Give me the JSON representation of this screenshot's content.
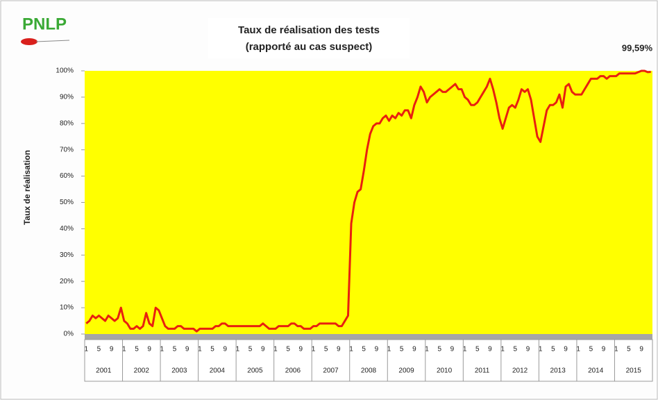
{
  "logo": "PNLP",
  "chart_data": {
    "type": "line",
    "title": [
      "Taux de réalisation des tests",
      "(rapporté au cas suspect)"
    ],
    "annotation": "99,59%",
    "y_label": "Taux de réalisation",
    "years": [
      "2001",
      "2002",
      "2003",
      "2004",
      "2005",
      "2006",
      "2007",
      "2008",
      "2009",
      "2010",
      "2011",
      "2012",
      "2013",
      "2014",
      "2015"
    ],
    "categories": [
      "1",
      null,
      null,
      null,
      "5",
      null,
      null,
      null,
      "9",
      null,
      null,
      null,
      "1",
      null,
      null,
      null,
      "5",
      null,
      null,
      null,
      "9",
      null,
      null,
      null,
      "1",
      null,
      null,
      null,
      "5",
      null,
      null,
      null,
      "9",
      null,
      null,
      null,
      "1",
      null,
      null,
      null,
      "5",
      null,
      null,
      null,
      "9",
      null,
      null,
      null,
      "1",
      null,
      null,
      null,
      "5",
      null,
      null,
      null,
      "9",
      null,
      null,
      null,
      "1",
      null,
      null,
      null,
      "5",
      null,
      null,
      null,
      "9",
      null,
      null,
      null,
      "1",
      null,
      null,
      null,
      "5",
      null,
      null,
      null,
      "9",
      null,
      null,
      null,
      "1",
      null,
      null,
      null,
      "5",
      null,
      null,
      null,
      "9",
      null,
      null,
      null,
      "1",
      null,
      null,
      null,
      "5",
      null,
      null,
      null,
      "9",
      null,
      null,
      null,
      "1",
      null,
      null,
      null,
      "5",
      null,
      null,
      null,
      "9",
      null,
      null,
      null,
      "1",
      null,
      null,
      null,
      "5",
      null,
      null,
      null,
      "9",
      null,
      null,
      null,
      "1",
      null,
      null,
      null,
      "5",
      null,
      null,
      null,
      "9",
      null,
      null,
      null,
      "1",
      null,
      null,
      null,
      "5",
      null,
      null,
      null,
      "9",
      null,
      null,
      null,
      "1",
      null,
      null,
      null,
      "5",
      null,
      null,
      null,
      "9",
      null,
      null,
      null,
      "1",
      null,
      null,
      null,
      "5",
      null,
      null,
      null,
      "9",
      null,
      null,
      null
    ],
    "series": [
      {
        "name": "Taux de réalisation",
        "color": "#e8200f",
        "values": [
          4,
          5,
          7,
          6,
          7,
          6,
          5,
          7,
          6,
          5,
          6,
          10,
          5,
          4,
          2,
          2,
          3,
          2,
          3,
          8,
          4,
          3,
          10,
          9,
          6,
          3,
          2,
          2,
          2,
          3,
          3,
          2,
          2,
          2,
          2,
          1,
          2,
          2,
          2,
          2,
          2,
          3,
          3,
          4,
          4,
          3,
          3,
          3,
          3,
          3,
          3,
          3,
          3,
          3,
          3,
          3,
          4,
          3,
          2,
          2,
          2,
          3,
          3,
          3,
          3,
          4,
          4,
          3,
          3,
          2,
          2,
          2,
          3,
          3,
          4,
          4,
          4,
          4,
          4,
          4,
          3,
          3,
          5,
          7,
          42,
          50,
          54,
          55,
          62,
          70,
          76,
          79,
          80,
          80,
          82,
          83,
          81,
          83,
          82,
          84,
          83,
          85,
          85,
          82,
          87,
          90,
          94,
          92,
          88,
          90,
          91,
          92,
          93,
          92,
          92,
          93,
          94,
          95,
          93,
          93,
          90,
          89,
          87,
          87,
          88,
          90,
          92,
          94,
          97,
          93,
          88,
          82,
          78,
          82,
          86,
          87,
          86,
          89,
          93,
          92,
          93,
          89,
          82,
          75,
          73,
          79,
          85,
          87,
          87,
          88,
          91,
          86,
          94,
          95,
          92,
          91,
          91,
          91,
          93,
          95,
          97,
          97,
          97,
          98,
          98,
          97,
          98,
          98,
          98,
          99,
          99,
          99,
          99,
          99,
          99,
          99.5,
          100,
          100,
          99.5,
          99.59
        ]
      }
    ],
    "ylim": [
      0,
      100
    ],
    "yticks": [
      {
        "value": 0,
        "label": "0%"
      },
      {
        "value": 10,
        "label": "10%"
      },
      {
        "value": 20,
        "label": "20%"
      },
      {
        "value": 30,
        "label": "30%"
      },
      {
        "value": 40,
        "label": "40%"
      },
      {
        "value": 50,
        "label": "50%"
      },
      {
        "value": 60,
        "label": "60%"
      },
      {
        "value": 70,
        "label": "70%"
      },
      {
        "value": 80,
        "label": "80%"
      },
      {
        "value": 90,
        "label": "90%"
      },
      {
        "value": 100,
        "label": "100%"
      }
    ],
    "plot_color": "#ffff00"
  }
}
